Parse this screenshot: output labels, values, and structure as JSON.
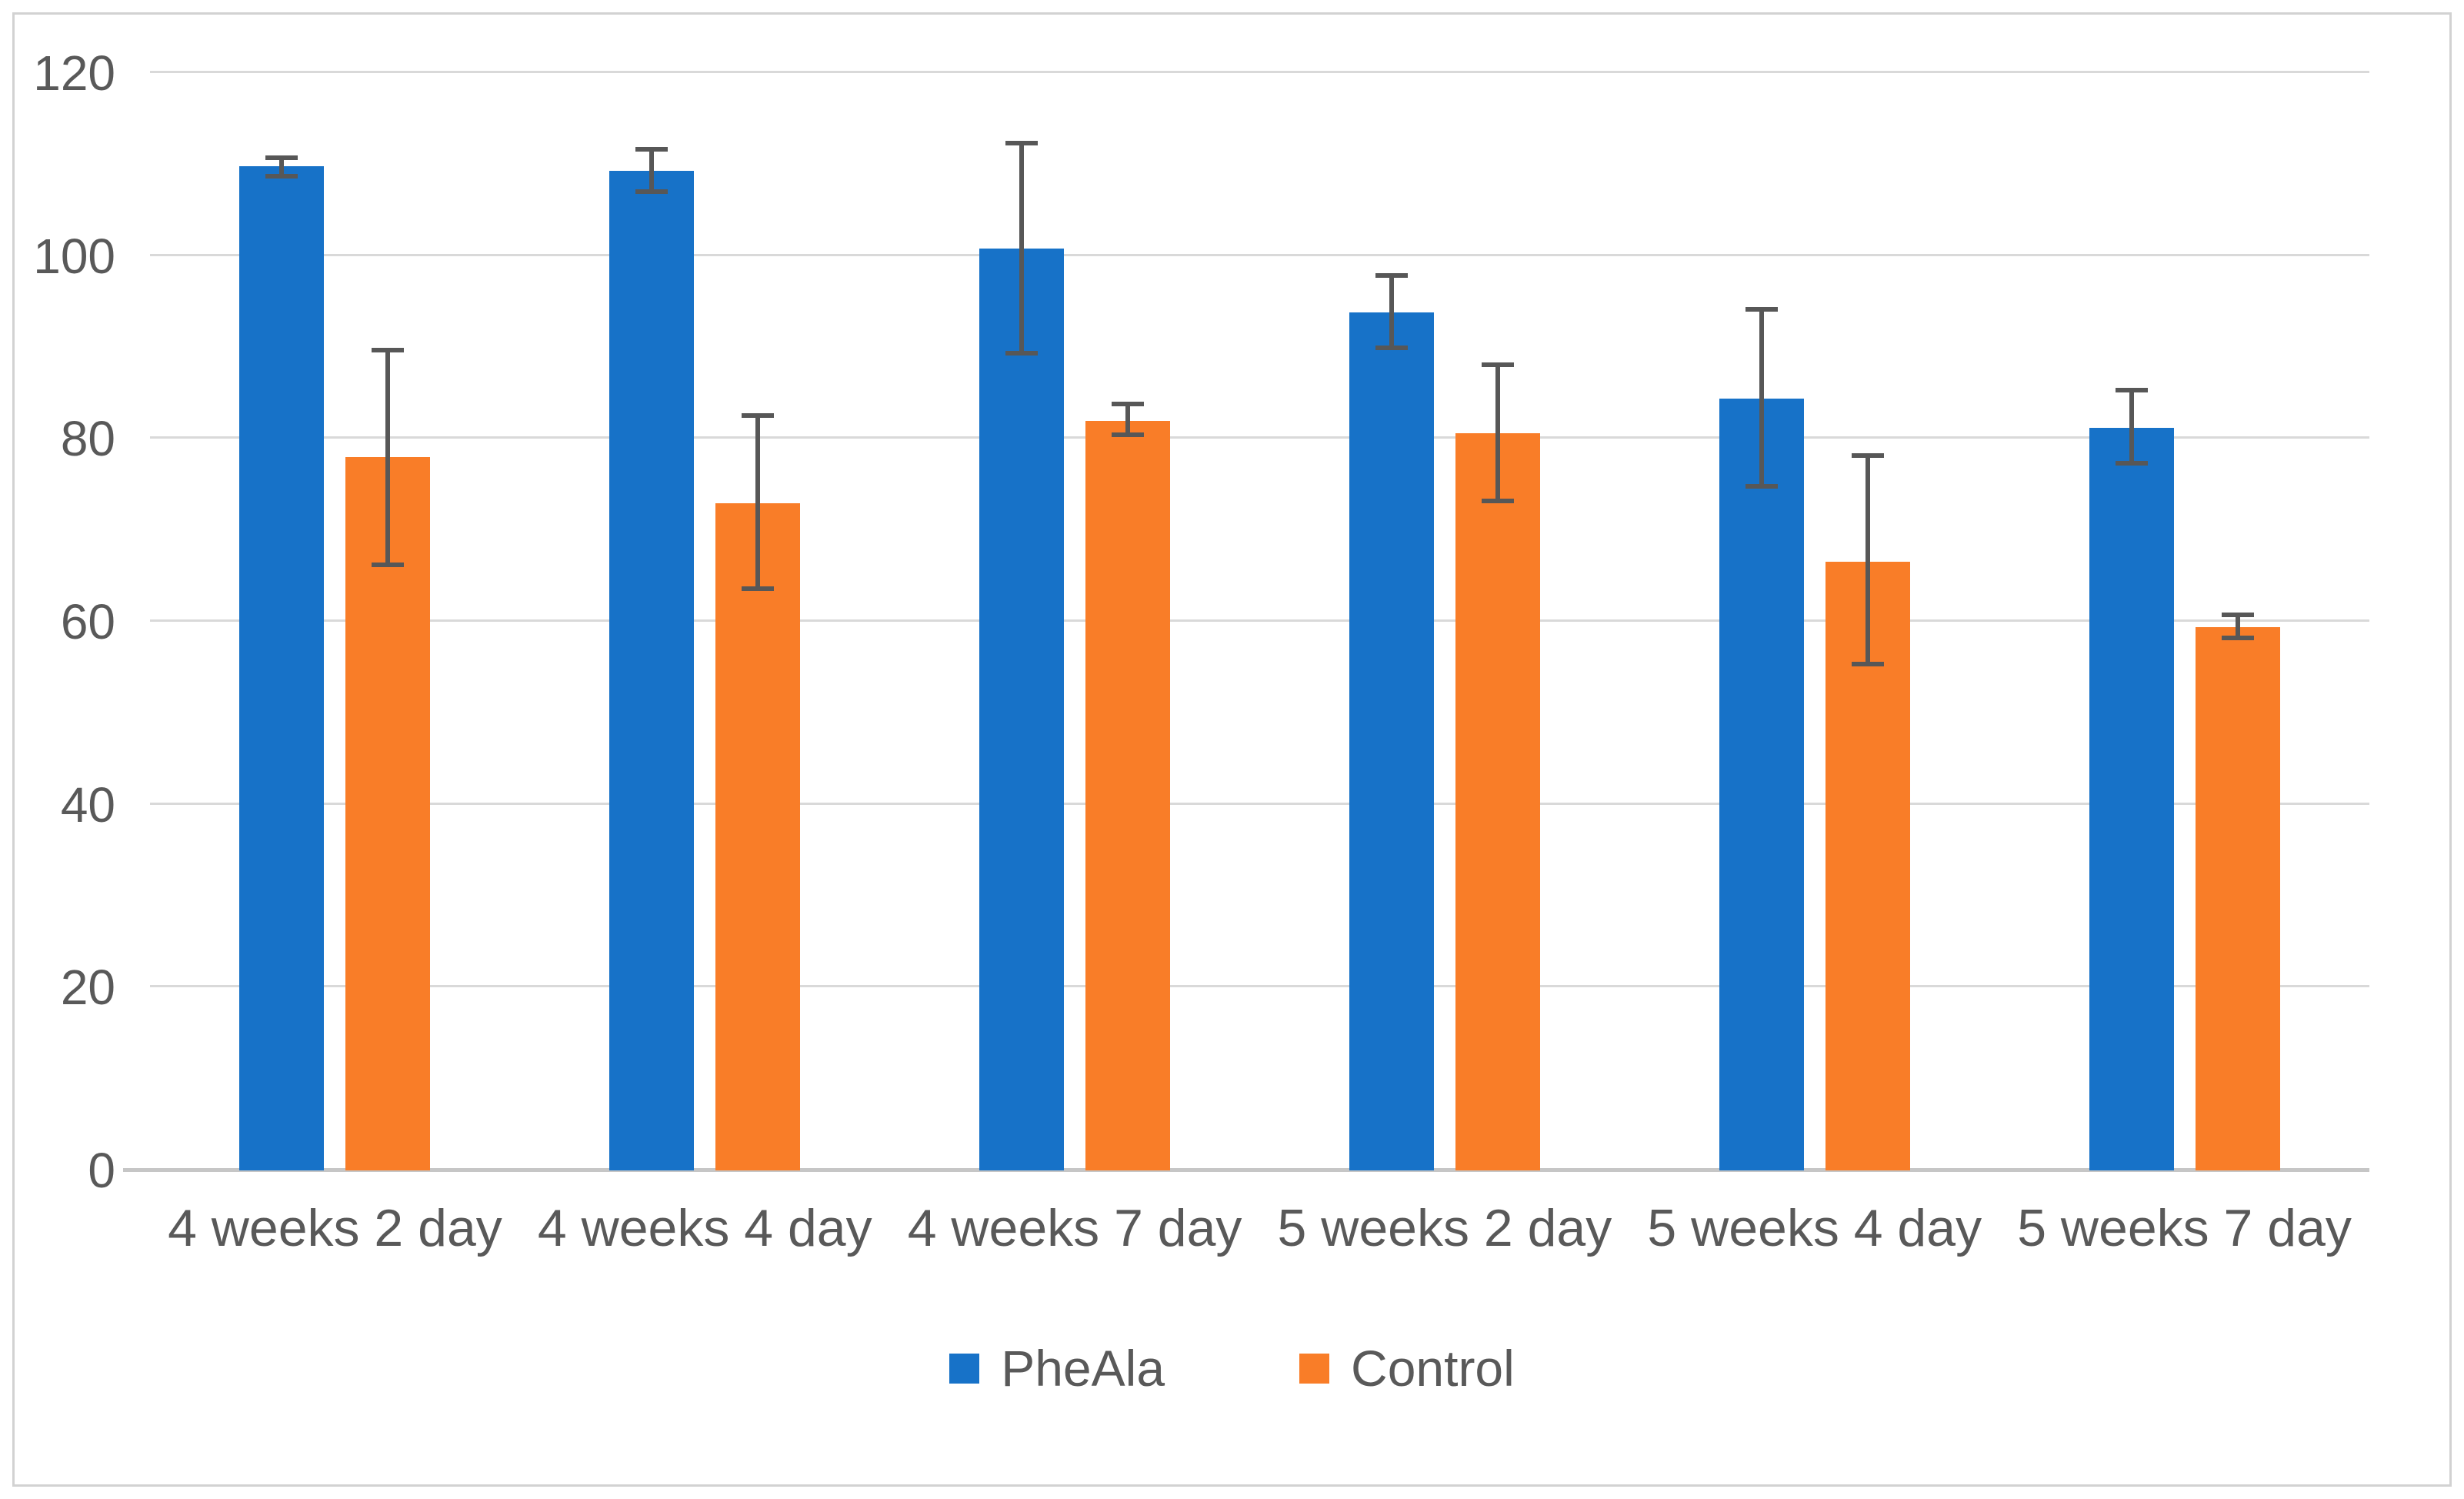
{
  "figure": {
    "background": "#FFFFFF",
    "border_color": "#D2D2D2"
  },
  "chart_data": {
    "type": "bar",
    "title": "",
    "xlabel": "",
    "ylabel": "",
    "categories": [
      "4 weeks 2 day",
      "4 weeks 4 day",
      "4 weeks 7 day",
      "5 weeks 2 day",
      "5 weeks 4 day",
      "5 weeks 7 day"
    ],
    "series": [
      {
        "name": "PheAla",
        "color": "#1772C8",
        "values": [
          109.8,
          109.3,
          100.8,
          93.8,
          84.4,
          81.2
        ],
        "error_low": [
          108.5,
          106.8,
          89.1,
          89.7,
          74.6,
          77.1
        ],
        "error_high": [
          111.0,
          111.9,
          112.6,
          98.1,
          94.4,
          85.6
        ]
      },
      {
        "name": "Control",
        "color": "#F97D28",
        "values": [
          78.0,
          73.0,
          82.0,
          80.6,
          66.6,
          59.4
        ],
        "error_low": [
          66.0,
          63.4,
          80.2,
          73.0,
          55.1,
          58.0
        ],
        "error_high": [
          90.0,
          82.8,
          84.1,
          88.4,
          78.4,
          61.0
        ]
      }
    ],
    "ylim": [
      0,
      120
    ],
    "yticks": [
      0,
      20,
      40,
      60,
      80,
      100,
      120
    ],
    "grid": true,
    "legend_position": "bottom",
    "gridline_color": "#D9D9D9",
    "axis_line_color": "#C6C6C6",
    "error_bar_color": "#575757",
    "text_color": "#595959"
  }
}
